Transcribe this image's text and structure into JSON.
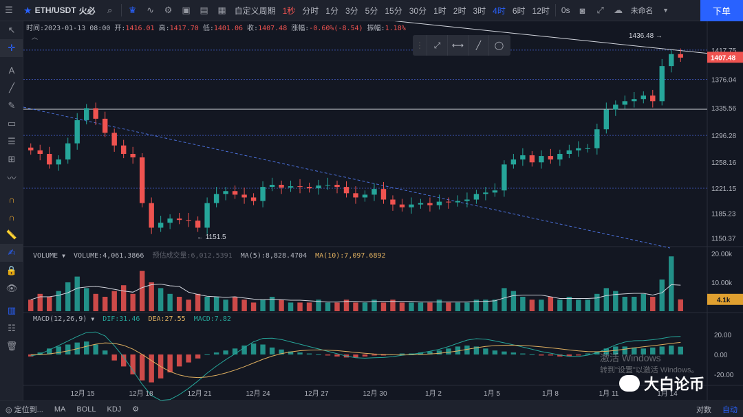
{
  "topbar": {
    "symbol": "ETH/USDT",
    "exchange": "火必",
    "period_menu": "自定义周期",
    "intervals": [
      {
        "label": "1秒",
        "state": "red"
      },
      {
        "label": "分时",
        "state": ""
      },
      {
        "label": "1分",
        "state": ""
      },
      {
        "label": "3分",
        "state": ""
      },
      {
        "label": "5分",
        "state": ""
      },
      {
        "label": "15分",
        "state": ""
      },
      {
        "label": "30分",
        "state": ""
      },
      {
        "label": "1时",
        "state": ""
      },
      {
        "label": "2时",
        "state": ""
      },
      {
        "label": "3时",
        "state": ""
      },
      {
        "label": "4时",
        "state": "active"
      },
      {
        "label": "6时",
        "state": ""
      },
      {
        "label": "12时",
        "state": ""
      }
    ],
    "countdown": "0s",
    "layout_name": "未命名",
    "order_button": "下单"
  },
  "ohlc": {
    "time_label": "时间:",
    "time": "2023-01-13 08:00",
    "open_label": "开:",
    "open": "1416.01",
    "high_label": "高:",
    "high": "1417.70",
    "low_label": "低:",
    "low": "1401.06",
    "close_label": "收:",
    "close": "1407.48",
    "change_label": "涨幅:",
    "change": "-0.60%(-8.54)",
    "amp_label": "振幅:",
    "amp": "1.18%"
  },
  "price_axis": {
    "labels": [
      "1417.75",
      "1376.04",
      "1335.56",
      "1296.28",
      "1258.16",
      "1221.15",
      "1185.23",
      "1150.37"
    ],
    "current_price": "1407.48",
    "high_marker": "1436.48",
    "low_marker": "1151.5"
  },
  "volume": {
    "title": "VOLUME",
    "volume_label": "VOLUME:",
    "volume_value": "4,061.3866",
    "forecast_label": "预估成交量:",
    "forecast_value": "6,012.5391",
    "ma5_label": "MA(5):",
    "ma5_value": "8,828.4704",
    "ma10_label": "MA(10):",
    "ma10_value": "7,097.6892",
    "axis_labels": [
      "20.00k",
      "10.00k"
    ],
    "current": "4.1k"
  },
  "macd": {
    "title": "MACD(12,26,9)",
    "dif_label": "DIF:",
    "dif_value": "31.46",
    "dea_label": "DEA:",
    "dea_value": "27.55",
    "macd_label": "MACD:",
    "macd_value": "7.82",
    "axis_labels": [
      "20.00",
      "0.00",
      "-20.00"
    ]
  },
  "time_axis": [
    "12月 15",
    "12月 18",
    "12月 21",
    "12月 24",
    "12月 27",
    "12月 30",
    "1月 2",
    "1月 5",
    "1月 8",
    "1月 11",
    "1月 14"
  ],
  "bottombar": {
    "locate": "定位到...",
    "ma": "MA",
    "boll": "BOLL",
    "kdj": "KDJ",
    "log": "对数",
    "auto": "自动"
  },
  "watermark": {
    "line1": "激活 Windows",
    "line2": "转到\"设置\"以激活 Windows。"
  },
  "brand": "大白论币",
  "colors": {
    "up": "#26a69a",
    "down": "#ef5350",
    "accent": "#2962ff",
    "background": "#131722"
  },
  "chart_data": {
    "type": "candlestick",
    "interval": "4h",
    "x": [
      "12月 15",
      "12月 18",
      "12月 21",
      "12月 24",
      "12月 27",
      "12月 30",
      "1月 2",
      "1月 5",
      "1月 8",
      "1月 11",
      "1月 14"
    ],
    "price_series": [
      1275,
      1270,
      1255,
      1262,
      1285,
      1318,
      1335,
      1320,
      1300,
      1282,
      1270,
      1265,
      1200,
      1165,
      1172,
      1178,
      1176,
      1175,
      1165,
      1200,
      1213,
      1217,
      1212,
      1208,
      1203,
      1223,
      1226,
      1222,
      1224,
      1223,
      1221,
      1225,
      1226,
      1223,
      1214,
      1208,
      1212,
      1220,
      1205,
      1198,
      1194,
      1198,
      1200,
      1197,
      1202,
      1201,
      1203,
      1205,
      1213,
      1215,
      1218,
      1255,
      1262,
      1268,
      1258,
      1267,
      1262,
      1270,
      1275,
      1278,
      1278,
      1305,
      1333,
      1340,
      1345,
      1348,
      1353,
      1345,
      1395,
      1412,
      1407
    ],
    "volume_series": [
      4,
      6,
      5,
      7,
      10,
      12,
      8,
      6,
      5,
      7,
      9,
      6,
      14,
      10,
      8,
      6,
      5,
      4,
      6,
      5,
      5,
      4,
      5,
      4,
      3,
      4,
      5,
      4,
      3,
      3,
      3,
      4,
      3,
      3,
      4,
      3,
      3,
      4,
      3,
      4,
      3,
      3,
      3,
      3,
      4,
      3,
      3,
      3,
      4,
      4,
      4,
      8,
      7,
      5,
      4,
      4,
      5,
      4,
      5,
      4,
      4,
      6,
      8,
      7,
      5,
      5,
      6,
      5,
      11,
      19,
      4.1
    ],
    "macd_series": [
      -2,
      2,
      6,
      8,
      10,
      12,
      13,
      10,
      4,
      -6,
      -12,
      -20,
      -26,
      -28,
      -24,
      -18,
      -12,
      -8,
      -4,
      0,
      2,
      4,
      6,
      9,
      11,
      10,
      7,
      5,
      3,
      2,
      1,
      0,
      -1,
      -2,
      -3,
      -3,
      -2,
      -1,
      -1,
      0,
      1,
      1,
      2,
      3,
      4,
      6,
      8,
      9,
      8,
      6,
      4,
      3,
      2,
      1,
      0,
      -1,
      -1,
      -2,
      -2,
      -1,
      1,
      3,
      6,
      8,
      8,
      7,
      6,
      7,
      8,
      9,
      7.82
    ],
    "ylim": [
      1140,
      1445
    ]
  }
}
